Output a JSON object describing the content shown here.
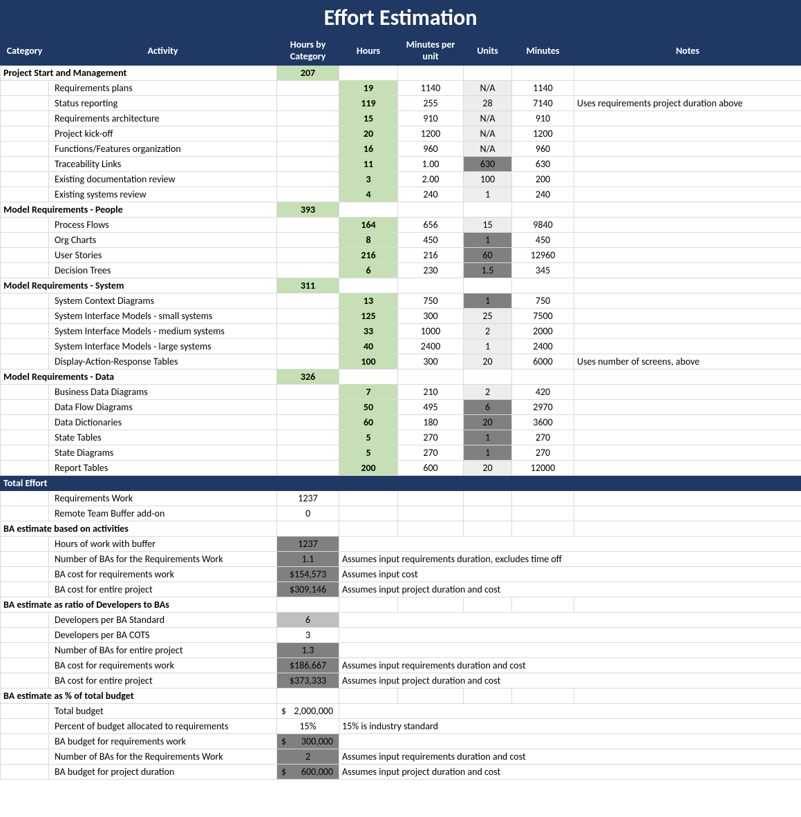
{
  "title": "Effort Estimation",
  "headers": {
    "category": "Category",
    "activity": "Activity",
    "hours_by_category": "Hours by Category",
    "hours": "Hours",
    "minutes_per_unit": "Minutes per unit",
    "units": "Units",
    "minutes": "Minutes",
    "notes": "Notes"
  },
  "sections": [
    {
      "name": "Project Start and Management",
      "hours_by_category": "207",
      "rows": [
        {
          "activity": "Requirements plans",
          "hours": "19",
          "mpu": "1140",
          "units": "N/A",
          "units_bg": "light",
          "minutes": "1140",
          "notes": ""
        },
        {
          "activity": "Status reporting",
          "hours": "119",
          "mpu": "255",
          "units": "28",
          "units_bg": "light",
          "minutes": "7140",
          "notes": "Uses requirements project duration above"
        },
        {
          "activity": "Requirements architecture",
          "hours": "15",
          "mpu": "910",
          "units": "N/A",
          "units_bg": "light",
          "minutes": "910",
          "notes": ""
        },
        {
          "activity": "Project kick-off",
          "hours": "20",
          "mpu": "1200",
          "units": "N/A",
          "units_bg": "light",
          "minutes": "1200",
          "notes": ""
        },
        {
          "activity": "Functions/Features organization",
          "hours": "16",
          "mpu": "960",
          "units": "N/A",
          "units_bg": "light",
          "minutes": "960",
          "notes": ""
        },
        {
          "activity": "Traceability Links",
          "hours": "11",
          "mpu": "1.00",
          "units": "630",
          "units_bg": "dark",
          "minutes": "630",
          "notes": ""
        },
        {
          "activity": "Existing documentation review",
          "hours": "3",
          "mpu": "2.00",
          "units": "100",
          "units_bg": "light",
          "minutes": "200",
          "notes": ""
        },
        {
          "activity": "Existing systems review",
          "hours": "4",
          "mpu": "240",
          "units": "1",
          "units_bg": "light",
          "minutes": "240",
          "notes": ""
        }
      ]
    },
    {
      "name": "Model Requirements - People",
      "hours_by_category": "393",
      "rows": [
        {
          "activity": "Process Flows",
          "hours": "164",
          "mpu": "656",
          "units": "15",
          "units_bg": "light",
          "minutes": "9840",
          "notes": ""
        },
        {
          "activity": "Org Charts",
          "hours": "8",
          "mpu": "450",
          "units": "1",
          "units_bg": "dark",
          "minutes": "450",
          "notes": ""
        },
        {
          "activity": "User Stories",
          "hours": "216",
          "mpu": "216",
          "units": "60",
          "units_bg": "dark",
          "minutes": "12960",
          "notes": ""
        },
        {
          "activity": "Decision Trees",
          "hours": "6",
          "mpu": "230",
          "units": "1.5",
          "units_bg": "dark",
          "minutes": "345",
          "notes": ""
        }
      ]
    },
    {
      "name": "Model Requirements - System",
      "hours_by_category": "311",
      "rows": [
        {
          "activity": "System Context Diagrams",
          "hours": "13",
          "mpu": "750",
          "units": "1",
          "units_bg": "dark",
          "minutes": "750",
          "notes": ""
        },
        {
          "activity": "System Interface Models - small systems",
          "hours": "125",
          "mpu": "300",
          "units": "25",
          "units_bg": "light",
          "minutes": "7500",
          "notes": ""
        },
        {
          "activity": "System Interface Models - medium systems",
          "hours": "33",
          "mpu": "1000",
          "units": "2",
          "units_bg": "light",
          "minutes": "2000",
          "notes": ""
        },
        {
          "activity": "System Interface Models - large systems",
          "hours": "40",
          "mpu": "2400",
          "units": "1",
          "units_bg": "light",
          "minutes": "2400",
          "notes": ""
        },
        {
          "activity": "Display-Action-Response Tables",
          "hours": "100",
          "mpu": "300",
          "units": "20",
          "units_bg": "light",
          "minutes": "6000",
          "notes": "Uses number of screens, above"
        }
      ]
    },
    {
      "name": "Model Requirements - Data",
      "hours_by_category": "326",
      "rows": [
        {
          "activity": "Business Data Diagrams",
          "hours": "7",
          "mpu": "210",
          "units": "2",
          "units_bg": "light",
          "minutes": "420",
          "notes": ""
        },
        {
          "activity": "Data Flow Diagrams",
          "hours": "50",
          "mpu": "495",
          "units": "6",
          "units_bg": "dark",
          "minutes": "2970",
          "notes": ""
        },
        {
          "activity": "Data Dictionaries",
          "hours": "60",
          "mpu": "180",
          "units": "20",
          "units_bg": "dark",
          "minutes": "3600",
          "notes": ""
        },
        {
          "activity": "State Tables",
          "hours": "5",
          "mpu": "270",
          "units": "1",
          "units_bg": "dark",
          "minutes": "270",
          "notes": ""
        },
        {
          "activity": "State Diagrams",
          "hours": "5",
          "mpu": "270",
          "units": "1",
          "units_bg": "dark",
          "minutes": "270",
          "notes": ""
        },
        {
          "activity": "Report Tables",
          "hours": "200",
          "mpu": "600",
          "units": "20",
          "units_bg": "light",
          "minutes": "12000",
          "notes": ""
        }
      ]
    }
  ],
  "total_effort_label": "Total Effort",
  "total_rows": [
    {
      "activity": "Requirements Work",
      "hbc": "1237",
      "hbc_bg": "none"
    },
    {
      "activity": "Remote Team Buffer add-on",
      "hbc": "0",
      "hbc_bg": "none"
    }
  ],
  "ba_activities": {
    "label": "BA estimate based on activities",
    "rows": [
      {
        "activity": "Hours of work with buffer",
        "hbc": "1237",
        "hbc_bg": "dark",
        "note": ""
      },
      {
        "activity": "Number of BAs for the Requirements Work",
        "hbc": "1.1",
        "hbc_bg": "dark",
        "note": "Assumes input requirements duration, excludes time off"
      },
      {
        "activity": "BA cost for requirements work",
        "hbc": "$154,573",
        "hbc_bg": "dark",
        "note": "Assumes input cost"
      },
      {
        "activity": "BA cost for entire project",
        "hbc": "$309,146",
        "hbc_bg": "dark",
        "note": "Assumes input project duration and cost"
      }
    ]
  },
  "ba_ratio": {
    "label": "BA estimate as ratio of Developers to BAs",
    "rows": [
      {
        "activity": "Developers per BA Standard",
        "hbc": "6",
        "hbc_bg": "med",
        "note": ""
      },
      {
        "activity": "Developers per BA COTS",
        "hbc": "3",
        "hbc_bg": "none",
        "note": ""
      },
      {
        "activity": "Number of BAs for entire project",
        "hbc": "1.3",
        "hbc_bg": "dark",
        "note": ""
      },
      {
        "activity": "BA cost for requirements work",
        "hbc": "$186,667",
        "hbc_bg": "dark",
        "note": "Assumes input requirements duration and cost"
      },
      {
        "activity": "BA cost for entire project",
        "hbc": "$373,333",
        "hbc_bg": "dark",
        "note": "Assumes input project duration and cost"
      }
    ]
  },
  "ba_budget": {
    "label": "BA estimate as % of total budget",
    "rows": [
      {
        "activity": "Total budget",
        "hbc": "2,000,000",
        "hbc_bg": "none",
        "money": true,
        "note": ""
      },
      {
        "activity": "Percent of budget allocated to requirements",
        "hbc": "15%",
        "hbc_bg": "none",
        "note": "15% is industry standard"
      },
      {
        "activity": "BA budget for requirements work",
        "hbc": "300,000",
        "hbc_bg": "dark",
        "money": true,
        "note": ""
      },
      {
        "activity": "Number of BAs for the Requirements Work",
        "hbc": "2",
        "hbc_bg": "dark",
        "note": "Assumes input requirements duration and cost"
      },
      {
        "activity": "BA budget for project duration",
        "hbc": "600,000",
        "hbc_bg": "dark",
        "money": true,
        "note": "Assumes input project duration and cost"
      }
    ]
  },
  "colors": {
    "header_bg": "#1f3864",
    "lightgreen": "#c5e0b4",
    "grey_light": "#ededed",
    "grey_dark": "#808080",
    "grey_med": "#bfbfbf",
    "border": "#d9d9d9"
  }
}
